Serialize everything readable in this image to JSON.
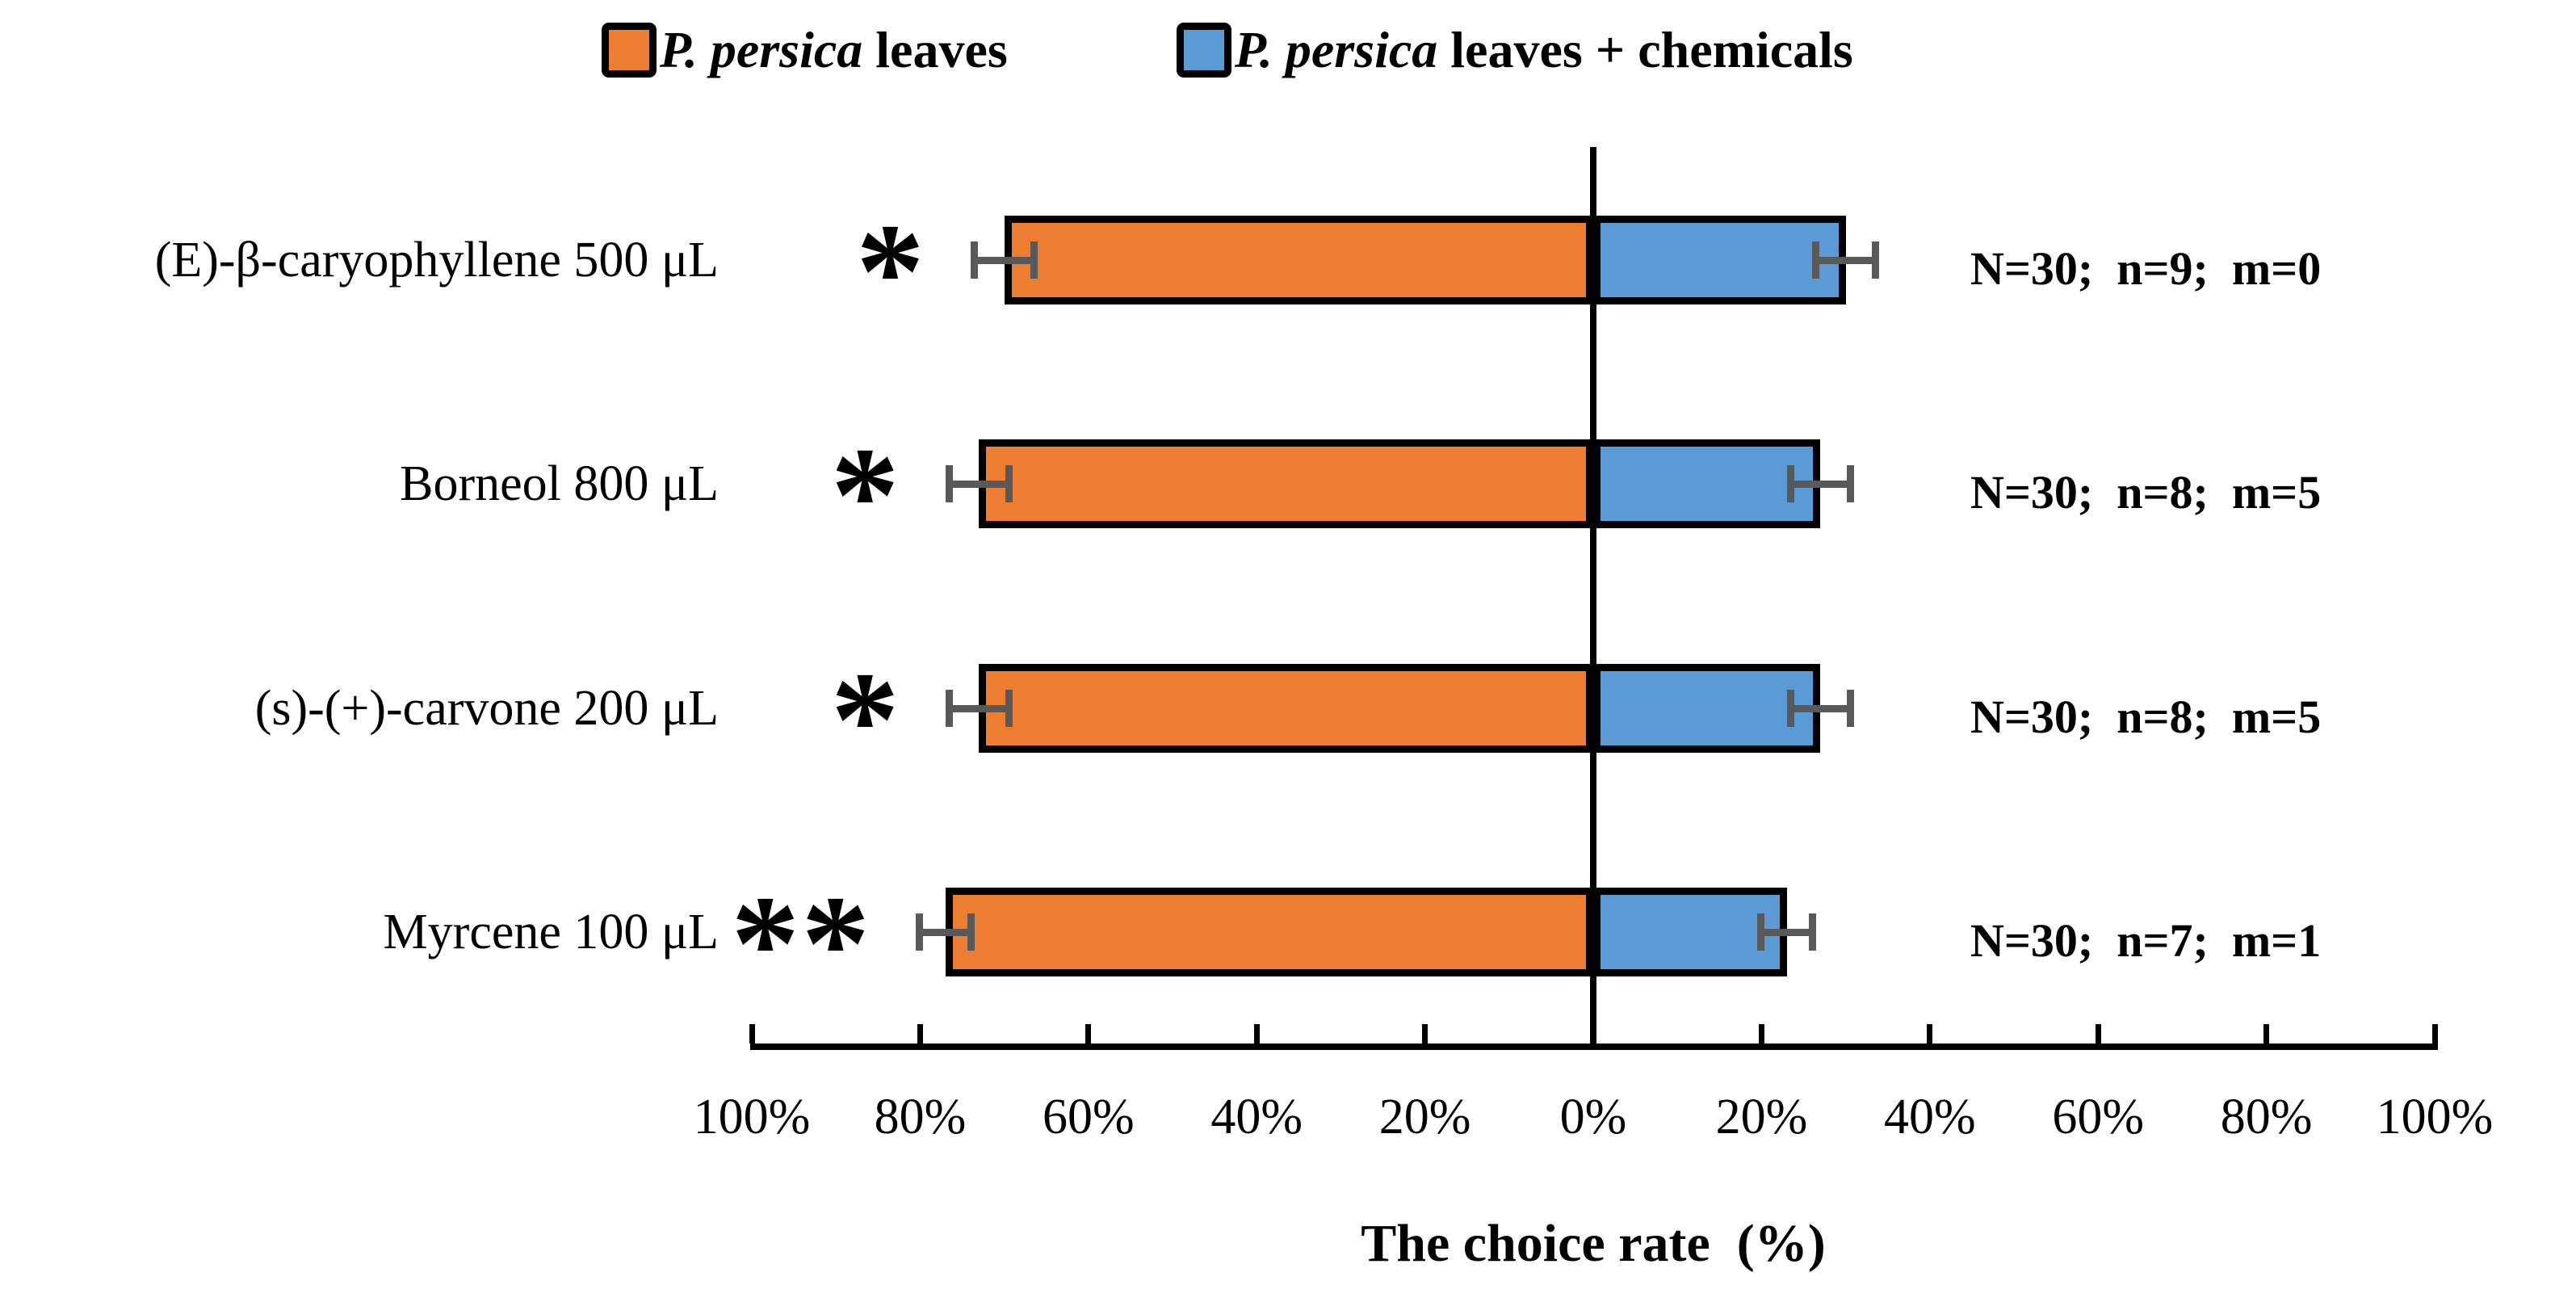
{
  "chart_data": {
    "type": "bar",
    "subtype": "horizontal-diverging-stacked",
    "xlabel": "The choice rate  (%)",
    "axis": {
      "tick_labels": [
        "100%",
        "80%",
        "60%",
        "40%",
        "20%",
        "0%",
        "20%",
        "40%",
        "60%",
        "80%",
        "100%"
      ],
      "left_max": 100,
      "right_max": 100,
      "unit": "percent"
    },
    "legend": {
      "items": [
        {
          "italic": "P. persica",
          "rest": " leaves",
          "color": "#ED7D31"
        },
        {
          "italic": "P. persica",
          "rest": " leaves + chemicals",
          "color": "#5B9BD5"
        }
      ]
    },
    "series_names": [
      "P. persica leaves",
      "P. persica leaves + chemicals"
    ],
    "colors": {
      "left_bar": "#ED7D31",
      "right_bar": "#5B9BD5",
      "bar_border": "#000000",
      "error_bar": "#595959",
      "axis": "#000000"
    },
    "rows": [
      {
        "category": "(E)-β-caryophyllene 500 μL",
        "left_value": 70,
        "left_err": 4,
        "right_value": 30,
        "right_err": 4,
        "significance": "*",
        "annotation": "N=30;  n=9;  m=0"
      },
      {
        "category": "Borneol 800 μL",
        "left_value": 73,
        "left_err": 4,
        "right_value": 27,
        "right_err": 4,
        "significance": "*",
        "annotation": "N=30;  n=8;  m=5"
      },
      {
        "category": "(s)-(+)-carvone 200 μL",
        "left_value": 73,
        "left_err": 4,
        "right_value": 27,
        "right_err": 4,
        "significance": "*",
        "annotation": "N=30;  n=8;  m=5"
      },
      {
        "category": "Myrcene 100 μL",
        "left_value": 77,
        "left_err": 3.5,
        "right_value": 23,
        "right_err": 3.5,
        "significance": "**",
        "annotation": "N=30;  n=7;  m=1"
      }
    ]
  }
}
